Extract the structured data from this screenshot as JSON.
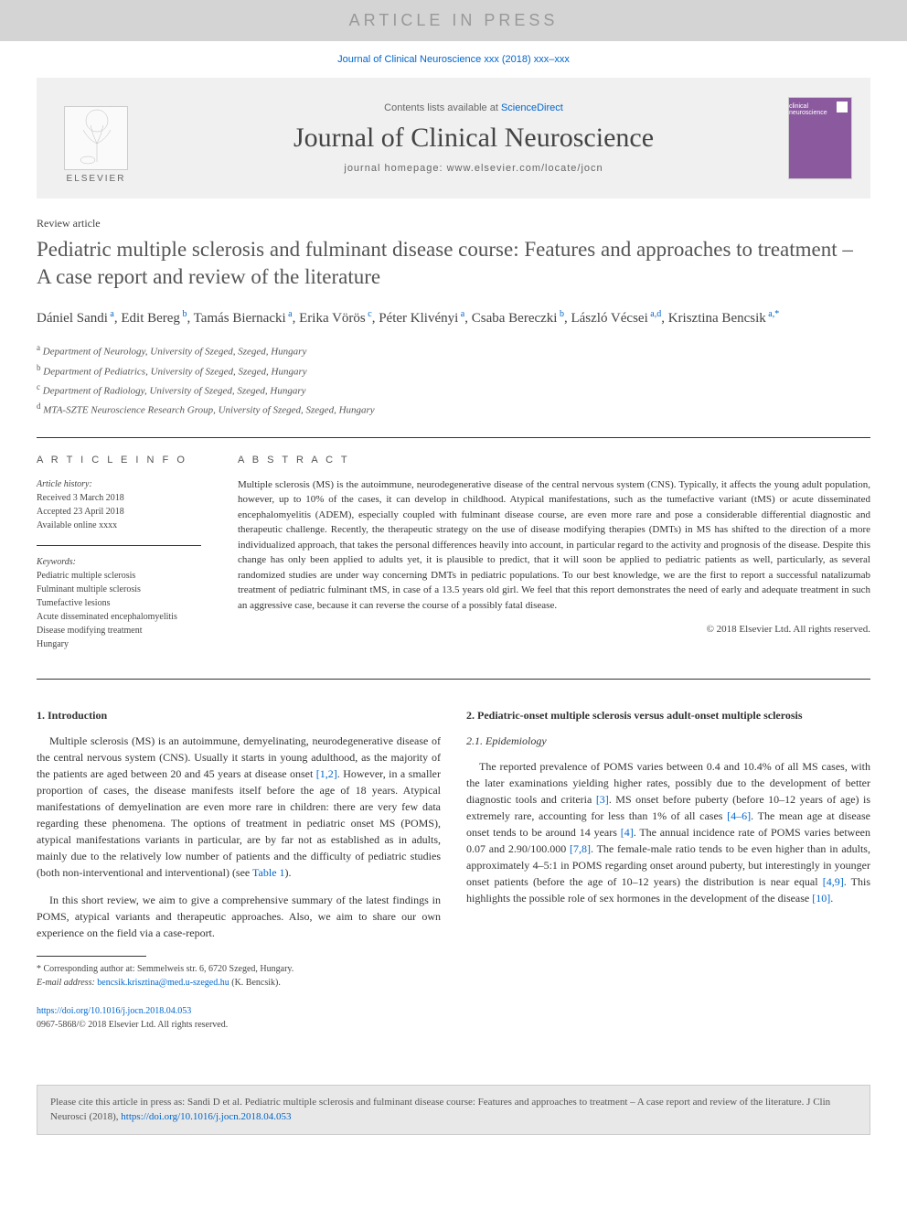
{
  "press_banner": "ARTICLE IN PRESS",
  "citation_line": "Journal of Clinical Neuroscience xxx (2018) xxx–xxx",
  "header": {
    "contents_prefix": "Contents lists available at ",
    "contents_link": "ScienceDirect",
    "journal_name": "Journal of Clinical Neuroscience",
    "homepage_prefix": "journal homepage: ",
    "homepage_url": "www.elsevier.com/locate/jocn",
    "elsevier_label": "ELSEVIER",
    "cover_label": "clinical neuroscience"
  },
  "article_type": "Review article",
  "title": "Pediatric multiple sclerosis and fulminant disease course: Features and approaches to treatment – A case report and review of the literature",
  "authors": [
    {
      "name": "Dániel Sandi",
      "sup": "a"
    },
    {
      "name": "Edit Bereg",
      "sup": "b"
    },
    {
      "name": "Tamás Biernacki",
      "sup": "a"
    },
    {
      "name": "Erika Vörös",
      "sup": "c"
    },
    {
      "name": "Péter Klivényi",
      "sup": "a"
    },
    {
      "name": "Csaba Bereczki",
      "sup": "b"
    },
    {
      "name": "László Vécsei",
      "sup": "a,d"
    },
    {
      "name": "Krisztina Bencsik",
      "sup": "a,*"
    }
  ],
  "affiliations": [
    {
      "sup": "a",
      "text": "Department of Neurology, University of Szeged, Szeged, Hungary"
    },
    {
      "sup": "b",
      "text": "Department of Pediatrics, University of Szeged, Szeged, Hungary"
    },
    {
      "sup": "c",
      "text": "Department of Radiology, University of Szeged, Szeged, Hungary"
    },
    {
      "sup": "d",
      "text": "MTA-SZTE Neuroscience Research Group, University of Szeged, Szeged, Hungary"
    }
  ],
  "info": {
    "header": "A R T I C L E   I N F O",
    "history_label": "Article history:",
    "received": "Received 3 March 2018",
    "accepted": "Accepted 23 April 2018",
    "online": "Available online xxxx",
    "keywords_label": "Keywords:",
    "keywords": [
      "Pediatric multiple sclerosis",
      "Fulminant multiple sclerosis",
      "Tumefactive lesions",
      "Acute disseminated encephalomyelitis",
      "Disease modifying treatment",
      "Hungary"
    ]
  },
  "abstract": {
    "header": "A B S T R A C T",
    "text": "Multiple sclerosis (MS) is the autoimmune, neurodegenerative disease of the central nervous system (CNS). Typically, it affects the young adult population, however, up to 10% of the cases, it can develop in childhood. Atypical manifestations, such as the tumefactive variant (tMS) or acute disseminated encephalomyelitis (ADEM), especially coupled with fulminant disease course, are even more rare and pose a considerable differential diagnostic and therapeutic challenge. Recently, the therapeutic strategy on the use of disease modifying therapies (DMTs) in MS has shifted to the direction of a more individualized approach, that takes the personal differences heavily into account, in particular regard to the activity and prognosis of the disease. Despite this change has only been applied to adults yet, it is plausible to predict, that it will soon be applied to pediatric patients as well, particularly, as several randomized studies are under way concerning DMTs in pediatric populations. To our best knowledge, we are the first to report a successful natalizumab treatment of pediatric fulminant tMS, in case of a 13.5 years old girl. We feel that this report demonstrates the need of early and adequate treatment in such an aggressive case, because it can reverse the course of a possibly fatal disease.",
    "copyright": "© 2018 Elsevier Ltd. All rights reserved."
  },
  "sections": {
    "intro_heading": "1. Introduction",
    "intro_p1": "Multiple sclerosis (MS) is an autoimmune, demyelinating, neurodegenerative disease of the central nervous system (CNS). Usually it starts in young adulthood, as the majority of the patients are aged between 20 and 45 years at disease onset [1,2]. However, in a smaller proportion of cases, the disease manifests itself before the age of 18 years. Atypical manifestations of demyelination are even more rare in children: there are very few data regarding these phenomena. The options of treatment in pediatric onset MS (POMS), atypical manifestations variants in particular, are by far not as established as in adults, mainly due to the relatively low number of patients and the difficulty of pediatric studies (both non-interventional and interventional) (see Table 1).",
    "intro_p2": "In this short review, we aim to give a comprehensive summary of the latest findings in POMS, atypical variants and therapeutic approaches. Also, we aim to share our own experience on the field via a case-report.",
    "sec2_heading": "2. Pediatric-onset multiple sclerosis versus adult-onset multiple sclerosis",
    "sec21_heading": "2.1. Epidemiology",
    "sec21_p1": "The reported prevalence of POMS varies between 0.4 and 10.4% of all MS cases, with the later examinations yielding higher rates, possibly due to the development of better diagnostic tools and criteria [3]. MS onset before puberty (before 10–12 years of age) is extremely rare, accounting for less than 1% of all cases [4–6]. The mean age at disease onset tends to be around 14 years [4]. The annual incidence rate of POMS varies between 0.07 and 2.90/100.000 [7,8]. The female-male ratio tends to be even higher than in adults, approximately 4–5:1 in POMS regarding onset around puberty, but interestingly in younger onset patients (before the age of 10–12 years) the distribution is near equal [4,9]. This highlights the possible role of sex hormones in the development of the disease [10]."
  },
  "footnote": {
    "corr_label": "* Corresponding author at: ",
    "corr_address": "Semmelweis str. 6, 6720 Szeged, Hungary.",
    "email_label": "E-mail address: ",
    "email": "bencsik.krisztina@med.u-szeged.hu",
    "email_name": " (K. Bencsik)."
  },
  "doi": {
    "url": "https://doi.org/10.1016/j.jocn.2018.04.053",
    "issn_copyright": "0967-5868/© 2018 Elsevier Ltd. All rights reserved."
  },
  "cite_box": {
    "prefix": "Please cite this article in press as: Sandi D et al. Pediatric multiple sclerosis and fulminant disease course: Features and approaches to treatment – A case report and review of the literature. J Clin Neurosci (2018), ",
    "url": "https://doi.org/10.1016/j.jocn.2018.04.053"
  },
  "colors": {
    "link": "#0066cc",
    "banner_bg": "#d4d4d4",
    "banner_text": "#999999",
    "header_bg": "#f0f0f0",
    "cover_bg": "#8b5a9e",
    "citebox_bg": "#e8e8e8",
    "text": "#333333"
  }
}
